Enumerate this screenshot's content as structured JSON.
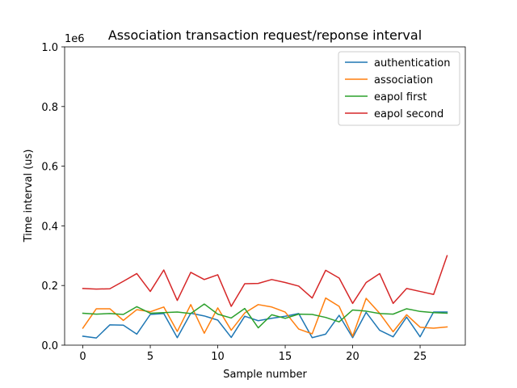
{
  "chart_data": {
    "type": "line",
    "title": "Association transaction request/reponse interval",
    "xlabel": "Sample number",
    "ylabel": "Time interval (us)",
    "offset_label": "1e6",
    "xlim": [
      -1.35,
      28.35
    ],
    "ylim": [
      0,
      1000000
    ],
    "xticks": [
      0,
      5,
      10,
      15,
      20,
      25
    ],
    "xtick_labels": [
      "0",
      "5",
      "10",
      "15",
      "20",
      "25"
    ],
    "yticks": [
      0,
      200000,
      400000,
      600000,
      800000,
      1000000
    ],
    "ytick_labels": [
      "0.0",
      "0.2",
      "0.4",
      "0.6",
      "0.8",
      "1.0"
    ],
    "grid": false,
    "legend": "top-right",
    "x": [
      0,
      1,
      2,
      3,
      4,
      5,
      6,
      7,
      8,
      9,
      10,
      11,
      12,
      13,
      14,
      15,
      16,
      17,
      18,
      19,
      20,
      21,
      22,
      23,
      24,
      25,
      26,
      27
    ],
    "series": [
      {
        "name": "authentication",
        "color": "#1f77b4",
        "values": [
          30000,
          24000,
          68000,
          67000,
          37000,
          103000,
          106000,
          25000,
          107000,
          98000,
          84000,
          26000,
          97000,
          82000,
          90000,
          97000,
          106000,
          25000,
          37000,
          100000,
          25000,
          110000,
          50000,
          28000,
          94000,
          28000,
          111000,
          111000
        ]
      },
      {
        "name": "association",
        "color": "#ff7f0e",
        "values": [
          57000,
          122000,
          122000,
          83000,
          119000,
          112000,
          128000,
          46000,
          136000,
          40000,
          125000,
          50000,
          108000,
          136000,
          128000,
          111000,
          54000,
          38000,
          158000,
          130000,
          30000,
          157000,
          107000,
          45000,
          102000,
          60000,
          57000,
          61000
        ]
      },
      {
        "name": "eapol first",
        "color": "#2ca02c",
        "values": [
          107000,
          104000,
          106000,
          103000,
          129000,
          107000,
          109000,
          111000,
          106000,
          138000,
          104000,
          91000,
          123000,
          58000,
          102000,
          90000,
          104000,
          103000,
          93000,
          78000,
          118000,
          114000,
          106000,
          104000,
          122000,
          113000,
          109000,
          107000
        ]
      },
      {
        "name": "eapol second",
        "color": "#d62728",
        "values": [
          190000,
          188000,
          189000,
          214000,
          240000,
          180000,
          252000,
          150000,
          244000,
          220000,
          236000,
          130000,
          206000,
          207000,
          220000,
          210000,
          198000,
          158000,
          251000,
          225000,
          140000,
          210000,
          240000,
          140000,
          190000,
          180000,
          170000,
          300000
        ]
      }
    ]
  }
}
